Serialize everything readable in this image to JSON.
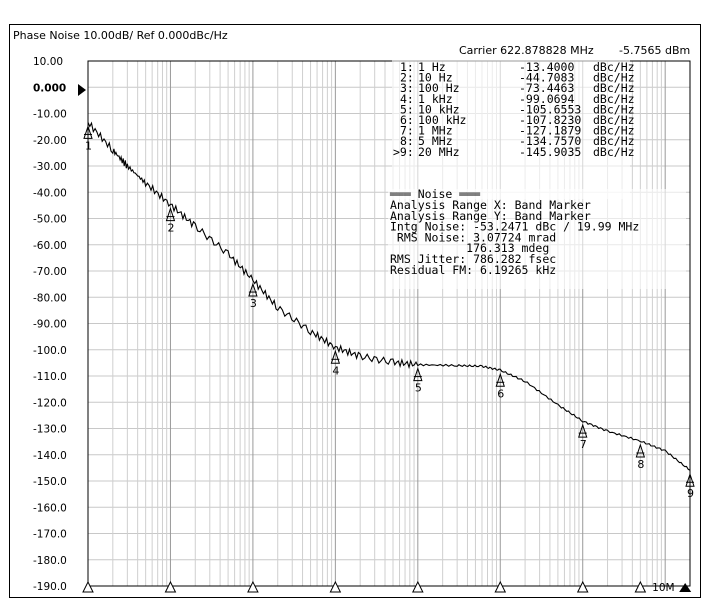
{
  "header": {
    "title": "Phase Noise 10.00dB/ Ref 0.000dBc/Hz",
    "carrier_label": "Carrier 622.878828 MHz",
    "carrier_power": "-5.7565 dBm"
  },
  "ref_label": "0.000",
  "marker_table": [
    {
      "idx": "1:",
      "freq": "1 Hz",
      "value": "-13.4000",
      "unit": "dBc/Hz"
    },
    {
      "idx": "2:",
      "freq": "10 Hz",
      "value": "-44.7083",
      "unit": "dBc/Hz"
    },
    {
      "idx": "3:",
      "freq": "100 Hz",
      "value": "-73.4463",
      "unit": "dBc/Hz"
    },
    {
      "idx": "4:",
      "freq": "1 kHz",
      "value": "-99.0694",
      "unit": "dBc/Hz"
    },
    {
      "idx": "5:",
      "freq": "10 kHz",
      "value": "-105.6553",
      "unit": "dBc/Hz"
    },
    {
      "idx": "6:",
      "freq": "100 kHz",
      "value": "-107.8230",
      "unit": "dBc/Hz"
    },
    {
      "idx": "7:",
      "freq": "1 MHz",
      "value": "-127.1879",
      "unit": "dBc/Hz"
    },
    {
      "idx": "8:",
      "freq": "5 MHz",
      "value": "-134.7570",
      "unit": "dBc/Hz"
    },
    {
      "idx": ">9:",
      "freq": "20 MHz",
      "value": "-145.9035",
      "unit": "dBc/Hz"
    }
  ],
  "noise_panel": {
    "heading": "═══ Noise ═══",
    "lines": [
      "Analysis Range X: Band Marker",
      "Analysis Range Y: Band Marker",
      "Intg Noise: -53.2471 dBc / 19.99 MHz",
      " RMS Noise: 3.07724 mrad",
      "           176.313 mdeg",
      "RMS Jitter: 786.282 fsec",
      "Residual FM: 6.19265 kHz"
    ]
  },
  "x_axis_label_10M": "10M",
  "chart_data": {
    "type": "line",
    "title": "Phase Noise 10.00dB/ Ref 0.000dBc/Hz",
    "xscale": "log",
    "xlim": [
      1,
      20000000
    ],
    "ylim": [
      -190,
      10
    ],
    "y_ticks": [
      "10.00",
      "0.000",
      "-10.00",
      "-20.00",
      "-30.00",
      "-40.00",
      "-50.00",
      "-60.00",
      "-70.00",
      "-80.00",
      "-90.00",
      "-100.0",
      "-110.0",
      "-120.0",
      "-130.0",
      "-140.0",
      "-150.0",
      "-160.0",
      "-170.0",
      "-180.0",
      "-190.0"
    ],
    "grid": true,
    "series": [
      {
        "x": [
          1,
          2,
          3,
          5,
          10,
          20,
          50,
          100,
          200,
          500,
          1000,
          2000,
          5000,
          10000,
          30000,
          60000,
          100000,
          200000,
          500000,
          1000000,
          2000000,
          5000000,
          10000000,
          20000000
        ],
        "y": [
          -13.4,
          -24,
          -30,
          -36.5,
          -44.7,
          -53,
          -63.5,
          -73.4,
          -84,
          -93,
          -99.1,
          -102.5,
          -104.8,
          -105.7,
          -106,
          -106.3,
          -107.8,
          -112,
          -121,
          -127.2,
          -131,
          -134.8,
          -138.5,
          -145.9
        ]
      }
    ],
    "markers": [
      {
        "label": "1",
        "x": 1,
        "y": -13.4
      },
      {
        "label": "2",
        "x": 10,
        "y": -44.7083
      },
      {
        "label": "3",
        "x": 100,
        "y": -73.4463
      },
      {
        "label": "4",
        "x": 1000,
        "y": -99.0694
      },
      {
        "label": "5",
        "x": 10000,
        "y": -105.6553
      },
      {
        "label": "6",
        "x": 100000,
        "y": -107.823
      },
      {
        "label": "7",
        "x": 1000000,
        "y": -127.1879
      },
      {
        "label": "8",
        "x": 5000000,
        "y": -134.757
      },
      {
        "label": "9",
        "x": 20000000,
        "y": -145.9035
      }
    ]
  }
}
